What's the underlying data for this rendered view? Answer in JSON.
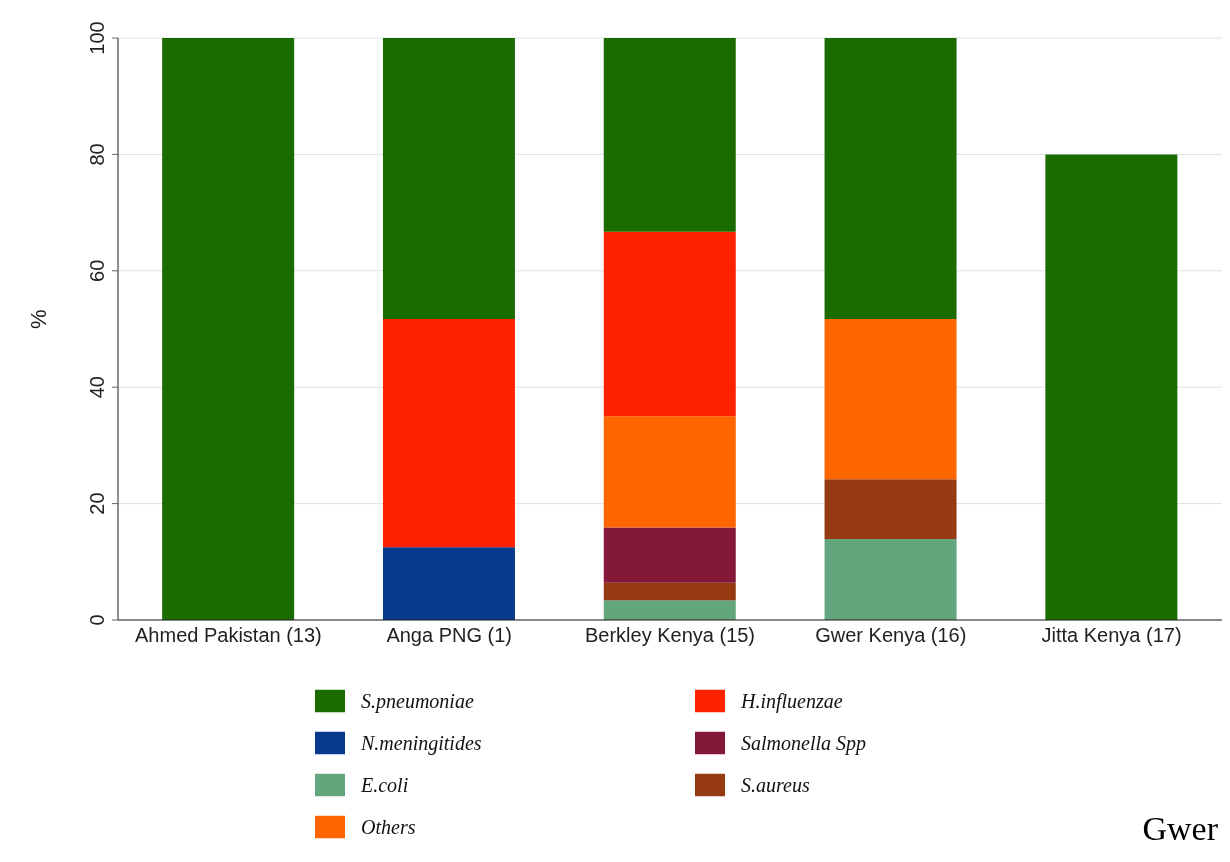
{
  "chart_data": {
    "type": "bar",
    "stacked": true,
    "ylabel": "%",
    "categories": [
      "Ahmed Pakistan (13)",
      "Anga PNG (1)",
      "Berkley Kenya (15)",
      "Gwer Kenya (16)",
      "Jitta Kenya (17)"
    ],
    "series": [
      {
        "name": "E.coli",
        "color": "#63a57d",
        "values": [
          null,
          null,
          3.4,
          13.9,
          null
        ]
      },
      {
        "name": "S.aureus",
        "color": "#963a14",
        "values": [
          null,
          null,
          3.0,
          10.3,
          null
        ]
      },
      {
        "name": "N.meningitides",
        "color": "#073a8c",
        "values": [
          null,
          12.5,
          null,
          null,
          null
        ]
      },
      {
        "name": "Salmonella Spp",
        "color": "#841838",
        "values": [
          null,
          null,
          9.5,
          null,
          null
        ]
      },
      {
        "name": "Others",
        "color": "#ff6600",
        "values": [
          null,
          null,
          19.1,
          27.5,
          null
        ]
      },
      {
        "name": "H.influenzae",
        "color": "#ff2200",
        "values": [
          null,
          39.2,
          31.7,
          null,
          null
        ]
      },
      {
        "name": "S.pneumoniae",
        "color": "#1a6b00",
        "values": [
          100,
          48.3,
          33.3,
          48.3,
          80
        ]
      }
    ],
    "ylim": [
      0,
      100
    ],
    "yticks": [
      0,
      20,
      40,
      60,
      80,
      100
    ],
    "grid": "y",
    "legend": "bottom",
    "annotations": [
      "Gwer"
    ]
  }
}
